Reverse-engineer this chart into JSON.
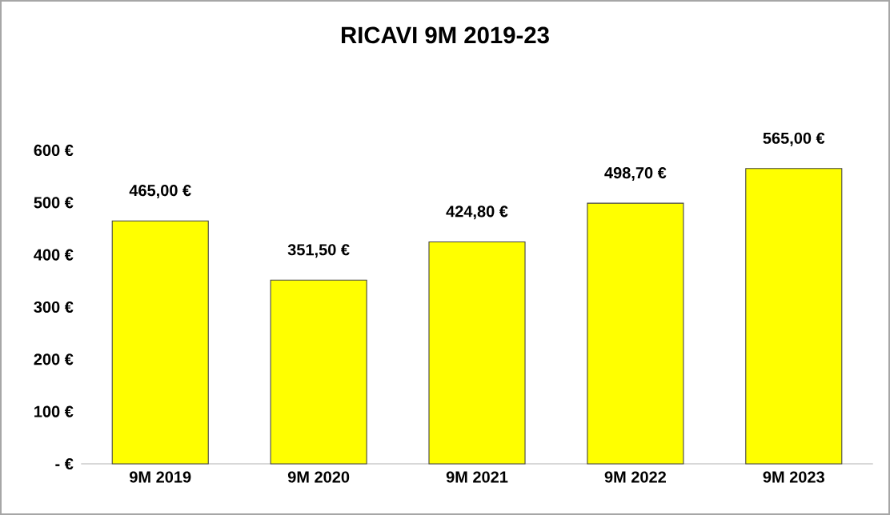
{
  "chart_data": {
    "type": "bar",
    "title": "RICAVI 9M 2019-23",
    "categories": [
      "9M 2019",
      "9M 2020",
      "9M 2021",
      "9M 2022",
      "9M 2023"
    ],
    "values": [
      465.0,
      351.5,
      424.8,
      498.7,
      565.0
    ],
    "value_labels": [
      "465,00 €",
      "351,50 €",
      "424,80 €",
      "498,70 €",
      "565,00 €"
    ],
    "color": "#ffff00",
    "ylim": [
      0,
      600
    ],
    "yticks": [
      {
        "value": 0,
        "label": "- €"
      },
      {
        "value": 100,
        "label": "100 €"
      },
      {
        "value": 200,
        "label": "200 €"
      },
      {
        "value": 300,
        "label": "300 €"
      },
      {
        "value": 400,
        "label": "400 €"
      },
      {
        "value": 500,
        "label": "500 €"
      },
      {
        "value": 600,
        "label": "600 €"
      }
    ]
  }
}
